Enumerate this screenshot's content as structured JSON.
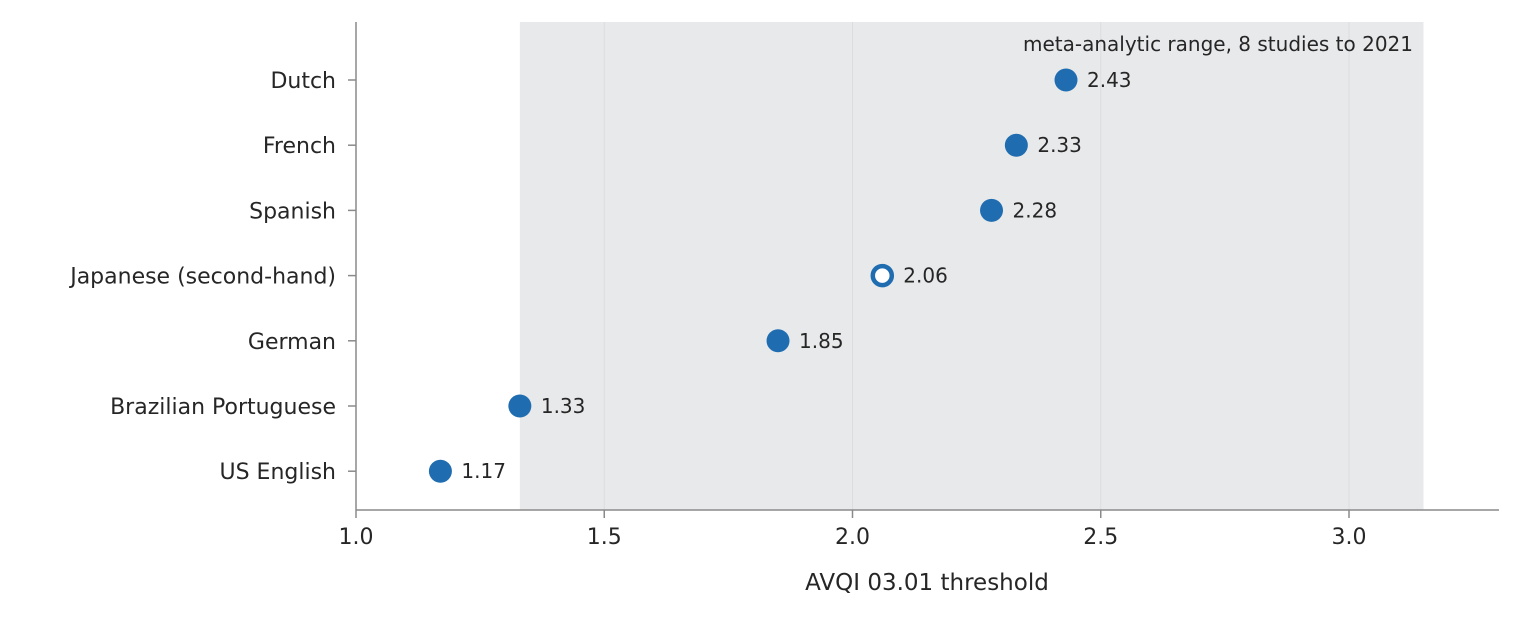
{
  "chart_data": {
    "type": "dot",
    "title": "",
    "xlabel": "AVQI 03.01 threshold",
    "ylabel": "",
    "xlim": [
      1.0,
      3.3
    ],
    "xticks": [
      1.0,
      1.5,
      2.0,
      2.5,
      3.0
    ],
    "xtick_labels": [
      "1.0",
      "1.5",
      "2.0",
      "2.5",
      "3.0"
    ],
    "grid": "vertical, light",
    "band": {
      "label": "meta-analytic range, 8 studies to 2021",
      "x_range": [
        1.33,
        3.15
      ],
      "color": "#e8e9eb"
    },
    "points": [
      {
        "category": "Dutch",
        "value": 2.43,
        "value_label": "2.43",
        "filled": true
      },
      {
        "category": "French",
        "value": 2.33,
        "value_label": "2.33",
        "filled": true
      },
      {
        "category": "Spanish",
        "value": 2.28,
        "value_label": "2.28",
        "filled": true
      },
      {
        "category": "Japanese (second-hand)",
        "value": 2.06,
        "value_label": "2.06",
        "filled": false
      },
      {
        "category": "German",
        "value": 1.85,
        "value_label": "1.85",
        "filled": true
      },
      {
        "category": "Brazilian Portuguese",
        "value": 1.33,
        "value_label": "1.33",
        "filled": true
      },
      {
        "category": "US English",
        "value": 1.17,
        "value_label": "1.17",
        "filled": true
      }
    ],
    "colors": {
      "marker": "#1f6db0",
      "axis": "#8a8a8a",
      "grid": "#dcdde0",
      "text": "#262626"
    }
  }
}
